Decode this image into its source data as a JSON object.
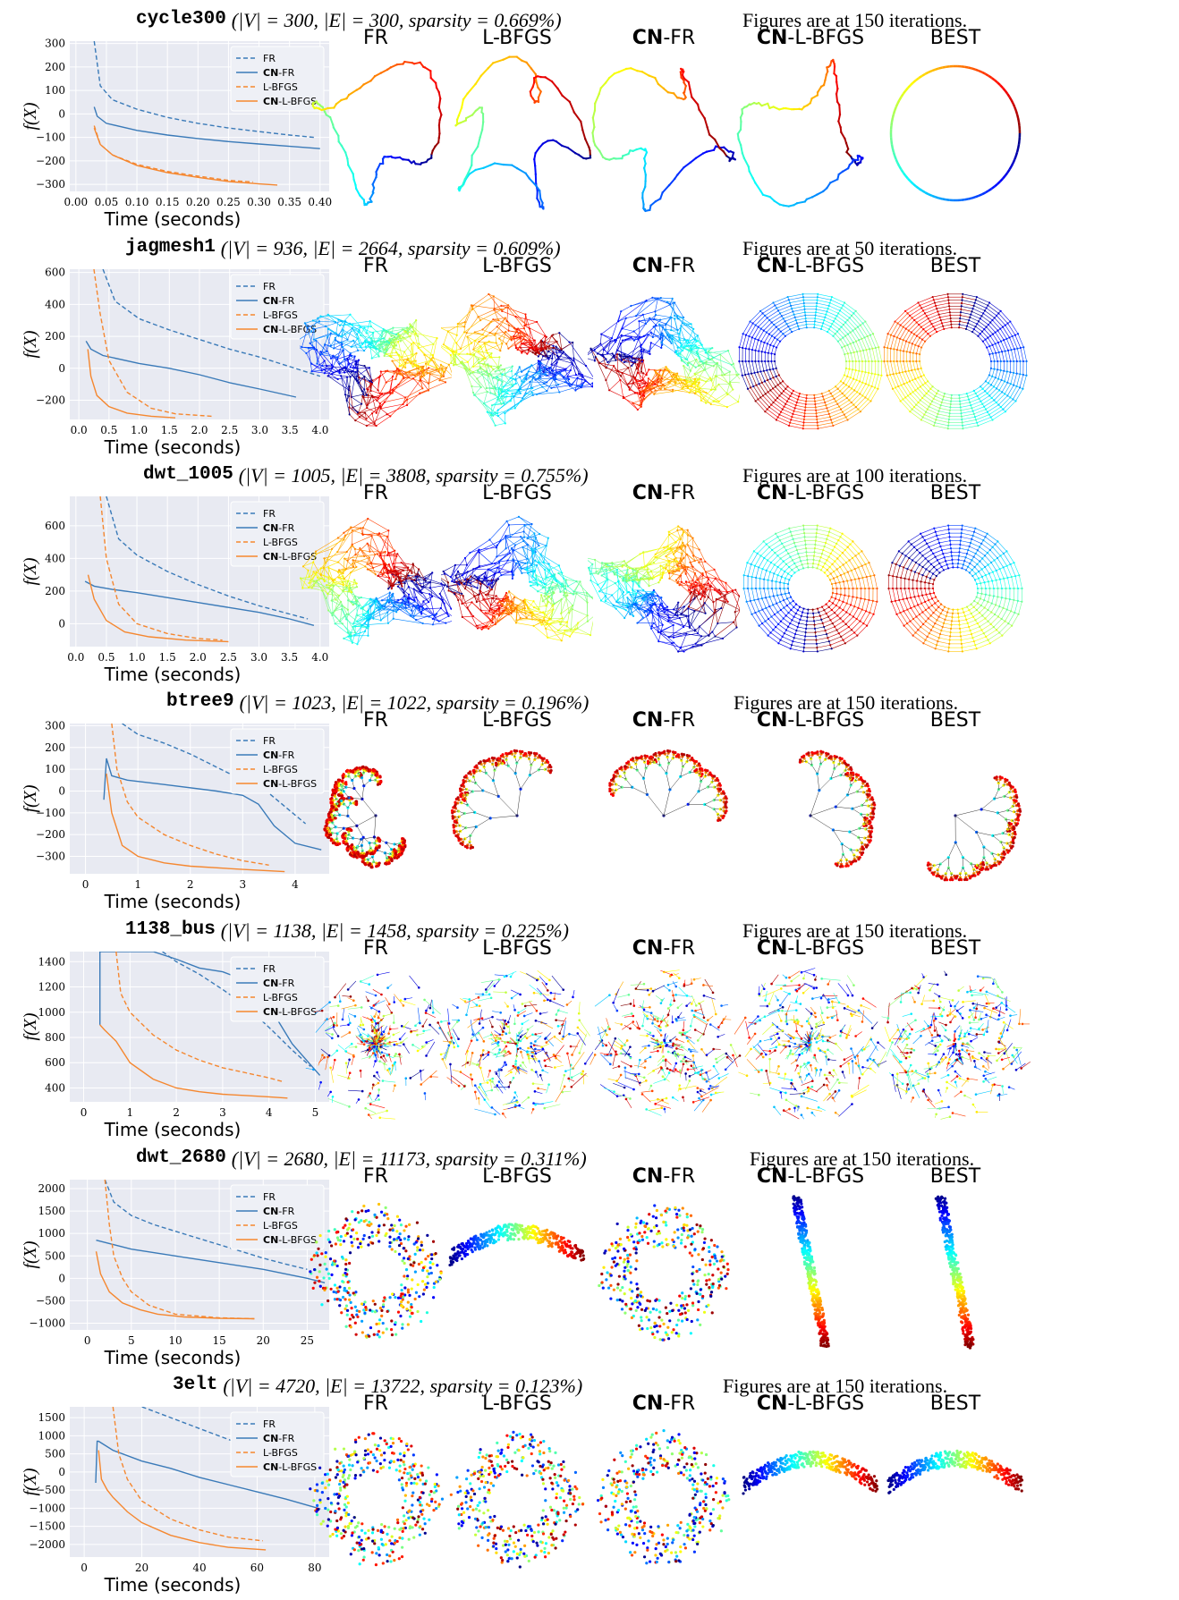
{
  "column_labels": [
    {
      "bold": "",
      "rest": "FR"
    },
    {
      "bold": "",
      "rest": "L-BFGS"
    },
    {
      "bold": "CN",
      "rest": "-FR"
    },
    {
      "bold": "CN",
      "rest": "-L-BFGS"
    },
    {
      "bold": "",
      "rest": "BEST"
    }
  ],
  "ylabel": "f(X)",
  "xlabel": "Time (seconds)",
  "legend": [
    "FR",
    "CN-FR",
    "L-BFGS",
    "CN-L-BFGS"
  ],
  "colors": {
    "fr": "#3a7ab8",
    "lbfgs": "#f5872f",
    "plot_bg": "#e8eaf2",
    "grid": "#ffffff"
  },
  "sections": [
    {
      "name": "cycle300",
      "stats": "(|V| = 300, |E| = 300, sparsity = 0.669%)",
      "iterations": "Figures are at 150 iterations."
    },
    {
      "name": "jagmesh1",
      "stats": "(|V| = 936, |E| = 2664, sparsity = 0.609%)",
      "iterations": "Figures are at 50 iterations."
    },
    {
      "name": "dwt_1005",
      "stats": "(|V| = 1005, |E| = 3808, sparsity = 0.755%)",
      "iterations": "Figures are at 100 iterations."
    },
    {
      "name": "btree9",
      "stats": "(|V| = 1023, |E| = 1022, sparsity = 0.196%)",
      "iterations": "Figures are at 150 iterations."
    },
    {
      "name": "1138_bus",
      "stats": "(|V| = 1138, |E| = 1458, sparsity = 0.225%)",
      "iterations": "Figures are at 150 iterations."
    },
    {
      "name": "dwt_2680",
      "stats": "(|V| = 2680, |E| = 11173, sparsity = 0.311%)",
      "iterations": "Figures are at 150 iterations."
    },
    {
      "name": "3elt",
      "stats": "(|V| = 4720, |E| = 13722, sparsity = 0.123%)",
      "iterations": "Figures are at 150 iterations."
    }
  ],
  "chart_data": [
    {
      "type": "line",
      "graph": "cycle300",
      "xticks": [
        "0.00",
        "0.05",
        "0.10",
        "0.15",
        "0.20",
        "0.25",
        "0.30",
        "0.35",
        "0.40"
      ],
      "xlim": [
        -0.01,
        0.415
      ],
      "yticks": [
        "300",
        "200",
        "100",
        "0",
        "−100",
        "−200",
        "−300"
      ],
      "ytick_values": [
        300,
        200,
        100,
        0,
        -100,
        -200,
        -300
      ],
      "ylim": [
        -330,
        310
      ],
      "series": [
        {
          "name": "FR",
          "style": "dashed",
          "color": "fr",
          "x": [
            0.03,
            0.04,
            0.06,
            0.1,
            0.15,
            0.2,
            0.25,
            0.3,
            0.35,
            0.39
          ],
          "y": [
            310,
            120,
            60,
            20,
            -15,
            -40,
            -60,
            -75,
            -90,
            -100
          ]
        },
        {
          "name": "CN-FR",
          "style": "solid",
          "color": "fr",
          "x": [
            0.03,
            0.035,
            0.05,
            0.1,
            0.15,
            0.2,
            0.25,
            0.3,
            0.35,
            0.4
          ],
          "y": [
            30,
            -10,
            -40,
            -70,
            -90,
            -105,
            -118,
            -128,
            -138,
            -148
          ]
        },
        {
          "name": "L-BFGS",
          "style": "dashed",
          "color": "lbfgs",
          "x": [
            0.03,
            0.04,
            0.06,
            0.1,
            0.15,
            0.2,
            0.25,
            0.29
          ],
          "y": [
            -50,
            -130,
            -175,
            -215,
            -245,
            -265,
            -283,
            -290
          ]
        },
        {
          "name": "CN-L-BFGS",
          "style": "solid",
          "color": "lbfgs",
          "x": [
            0.03,
            0.04,
            0.06,
            0.1,
            0.15,
            0.2,
            0.25,
            0.3,
            0.33
          ],
          "y": [
            -60,
            -130,
            -175,
            -220,
            -250,
            -270,
            -288,
            -298,
            -303
          ]
        }
      ]
    },
    {
      "type": "line",
      "graph": "jagmesh1",
      "xticks": [
        "0.0",
        "0.5",
        "1.0",
        "1.5",
        "2.0",
        "2.5",
        "3.0",
        "3.5",
        "4.0"
      ],
      "xlim": [
        -0.15,
        4.15
      ],
      "yticks": [
        "600",
        "400",
        "200",
        "0",
        "−200"
      ],
      "ytick_values": [
        600,
        400,
        200,
        0,
        -200
      ],
      "ylim": [
        -320,
        620
      ],
      "series": [
        {
          "name": "FR",
          "style": "dashed",
          "color": "fr",
          "x": [
            0.4,
            0.6,
            1.0,
            1.5,
            2.0,
            2.5,
            3.0,
            3.5,
            4.0
          ],
          "y": [
            620,
            420,
            310,
            240,
            180,
            120,
            70,
            10,
            -50
          ]
        },
        {
          "name": "CN-FR",
          "style": "solid",
          "color": "fr",
          "x": [
            0.12,
            0.2,
            0.4,
            1.0,
            1.5,
            2.0,
            2.5,
            3.0,
            3.6
          ],
          "y": [
            170,
            120,
            80,
            30,
            0,
            -40,
            -90,
            -130,
            -180
          ]
        },
        {
          "name": "L-BFGS",
          "style": "dashed",
          "color": "lbfgs",
          "x": [
            0.25,
            0.35,
            0.5,
            0.8,
            1.2,
            1.6,
            2.2
          ],
          "y": [
            620,
            350,
            50,
            -150,
            -250,
            -285,
            -300
          ]
        },
        {
          "name": "CN-L-BFGS",
          "style": "solid",
          "color": "lbfgs",
          "x": [
            0.15,
            0.2,
            0.3,
            0.5,
            0.8,
            1.2,
            1.6
          ],
          "y": [
            120,
            -50,
            -170,
            -240,
            -280,
            -300,
            -310
          ]
        }
      ]
    },
    {
      "type": "line",
      "graph": "dwt_1005",
      "xticks": [
        "0.0",
        "0.5",
        "1.0",
        "1.5",
        "2.0",
        "2.5",
        "3.0",
        "3.5",
        "4.0"
      ],
      "xlim": [
        -0.1,
        4.15
      ],
      "yticks": [
        "600",
        "400",
        "200",
        "0"
      ],
      "ytick_values": [
        600,
        400,
        200,
        0
      ],
      "ylim": [
        -140,
        780
      ],
      "series": [
        {
          "name": "FR",
          "style": "dashed",
          "color": "fr",
          "x": [
            0.5,
            0.7,
            1.0,
            1.5,
            2.0,
            2.5,
            3.0,
            3.5,
            3.8
          ],
          "y": [
            780,
            520,
            420,
            320,
            240,
            170,
            110,
            60,
            30
          ]
        },
        {
          "name": "CN-FR",
          "style": "solid",
          "color": "fr",
          "x": [
            0.15,
            0.3,
            0.6,
            1.0,
            1.5,
            2.0,
            2.5,
            3.0,
            3.5,
            3.9
          ],
          "y": [
            260,
            230,
            210,
            190,
            160,
            130,
            100,
            70,
            30,
            -10
          ]
        },
        {
          "name": "L-BFGS",
          "style": "dashed",
          "color": "lbfgs",
          "x": [
            0.4,
            0.5,
            0.7,
            1.0,
            1.5,
            2.0,
            2.4
          ],
          "y": [
            780,
            400,
            120,
            0,
            -60,
            -90,
            -100
          ]
        },
        {
          "name": "CN-L-BFGS",
          "style": "solid",
          "color": "lbfgs",
          "x": [
            0.2,
            0.3,
            0.5,
            0.8,
            1.2,
            1.8,
            2.5
          ],
          "y": [
            300,
            150,
            20,
            -50,
            -80,
            -100,
            -110
          ]
        }
      ]
    },
    {
      "type": "line",
      "graph": "btree9",
      "xticks": [
        "0",
        "1",
        "2",
        "3",
        "4"
      ],
      "xlim": [
        -0.3,
        4.65
      ],
      "yticks": [
        "300",
        "200",
        "100",
        "0",
        "−100",
        "−200",
        "−300"
      ],
      "ytick_values": [
        300,
        200,
        100,
        0,
        -100,
        -200,
        -300
      ],
      "ylim": [
        -380,
        310
      ],
      "series": [
        {
          "name": "FR",
          "style": "dashed",
          "color": "fr",
          "x": [
            0.7,
            1.0,
            1.5,
            2.0,
            2.5,
            3.0,
            3.5,
            4.0,
            4.2
          ],
          "y": [
            310,
            260,
            220,
            170,
            110,
            50,
            -10,
            -110,
            -150
          ]
        },
        {
          "name": "CN-FR",
          "style": "solid",
          "color": "fr",
          "x": [
            0.35,
            0.4,
            0.5,
            0.8,
            1.5,
            2.5,
            3.0,
            3.3,
            3.6,
            4.0,
            4.5
          ],
          "y": [
            -40,
            150,
            70,
            50,
            30,
            0,
            -20,
            -60,
            -160,
            -240,
            -270
          ]
        },
        {
          "name": "L-BFGS",
          "style": "dashed",
          "color": "lbfgs",
          "x": [
            0.5,
            0.6,
            0.8,
            1.0,
            1.5,
            2.0,
            2.5,
            3.0,
            3.5
          ],
          "y": [
            310,
            100,
            -50,
            -120,
            -200,
            -250,
            -290,
            -320,
            -340
          ]
        },
        {
          "name": "CN-L-BFGS",
          "style": "solid",
          "color": "lbfgs",
          "x": [
            0.4,
            0.5,
            0.7,
            1.0,
            1.5,
            2.0,
            3.0,
            3.8
          ],
          "y": [
            80,
            -100,
            -250,
            -300,
            -330,
            -345,
            -360,
            -370
          ]
        }
      ]
    },
    {
      "type": "line",
      "graph": "1138_bus",
      "xticks": [
        "0",
        "1",
        "2",
        "3",
        "4",
        "5"
      ],
      "xlim": [
        -0.3,
        5.3
      ],
      "yticks": [
        "1400",
        "1200",
        "1000",
        "800",
        "600",
        "400"
      ],
      "ytick_values": [
        1400,
        1200,
        1000,
        800,
        600,
        400
      ],
      "ylim": [
        290,
        1480
      ],
      "series": [
        {
          "name": "FR",
          "style": "dashed",
          "color": "fr",
          "x": [
            1.7,
            2.0,
            2.5,
            3.0,
            3.5,
            4.0,
            4.5,
            4.9
          ],
          "y": [
            1480,
            1400,
            1300,
            1180,
            1050,
            880,
            700,
            570
          ]
        },
        {
          "name": "CN-FR",
          "style": "solid",
          "color": "fr",
          "x": [
            0.35,
            0.35,
            0.4,
            0.7,
            1.0,
            1.5,
            2.0,
            2.5,
            3.0,
            3.5,
            4.0,
            4.5,
            5.1
          ],
          "y": [
            900,
            1480,
            1480,
            1480,
            1480,
            1480,
            1420,
            1350,
            1320,
            1250,
            1050,
            750,
            500
          ]
        },
        {
          "name": "L-BFGS",
          "style": "dashed",
          "color": "lbfgs",
          "x": [
            0.7,
            0.8,
            1.0,
            1.5,
            2.0,
            2.5,
            3.0,
            3.5,
            4.0,
            4.3
          ],
          "y": [
            1480,
            1150,
            1000,
            820,
            700,
            620,
            560,
            520,
            480,
            450
          ]
        },
        {
          "name": "CN-L-BFGS",
          "style": "solid",
          "color": "lbfgs",
          "x": [
            0.35,
            0.45,
            0.7,
            1.0,
            1.5,
            2.0,
            2.5,
            3.0,
            3.5,
            4.0,
            4.4
          ],
          "y": [
            900,
            860,
            770,
            600,
            470,
            400,
            370,
            350,
            340,
            330,
            320
          ]
        }
      ]
    },
    {
      "type": "line",
      "graph": "dwt_2680",
      "xticks": [
        "0",
        "5",
        "10",
        "15",
        "20",
        "25"
      ],
      "xlim": [
        -2,
        27.5
      ],
      "yticks": [
        "2000",
        "1500",
        "1000",
        "500",
        "0",
        "−500",
        "−1000"
      ],
      "ytick_values": [
        2000,
        1500,
        1000,
        500,
        0,
        -500,
        -1000
      ],
      "ylim": [
        -1150,
        2200
      ],
      "series": [
        {
          "name": "FR",
          "style": "dashed",
          "color": "fr",
          "x": [
            2.0,
            3.0,
            5.0,
            7.5,
            10.0,
            12.5,
            15.0,
            17.5,
            20.0,
            22.5,
            25.0
          ],
          "y": [
            2200,
            1700,
            1400,
            1200,
            1050,
            900,
            750,
            600,
            450,
            320,
            200
          ]
        },
        {
          "name": "CN-FR",
          "style": "solid",
          "color": "fr",
          "x": [
            1.0,
            3.0,
            5.0,
            10.0,
            15.0,
            20.0,
            25.0,
            27.0
          ],
          "y": [
            850,
            750,
            650,
            500,
            350,
            200,
            0,
            -100
          ]
        },
        {
          "name": "L-BFGS",
          "style": "dashed",
          "color": "lbfgs",
          "x": [
            2.0,
            2.5,
            3.0,
            4.0,
            5.0,
            7.0,
            10.0,
            15.0,
            19.0
          ],
          "y": [
            2200,
            1200,
            500,
            0,
            -300,
            -600,
            -800,
            -880,
            -900
          ]
        },
        {
          "name": "CN-L-BFGS",
          "style": "solid",
          "color": "lbfgs",
          "x": [
            1.0,
            1.5,
            2.5,
            4.0,
            6.0,
            8.0,
            11.0,
            15.0,
            19.0
          ],
          "y": [
            600,
            100,
            -300,
            -550,
            -700,
            -800,
            -860,
            -890,
            -900
          ]
        }
      ]
    },
    {
      "type": "line",
      "graph": "3elt",
      "xticks": [
        "0",
        "20",
        "40",
        "60",
        "80"
      ],
      "xlim": [
        -5,
        85
      ],
      "yticks": [
        "1500",
        "1000",
        "500",
        "0",
        "−500",
        "−1000",
        "−1500",
        "−2000"
      ],
      "ytick_values": [
        1500,
        1000,
        500,
        0,
        -500,
        -1000,
        -1500,
        -2000
      ],
      "ylim": [
        -2350,
        1800
      ],
      "series": [
        {
          "name": "FR",
          "style": "dashed",
          "color": "fr",
          "x": [
            20,
            30,
            40,
            50,
            60,
            70,
            80
          ],
          "y": [
            1800,
            1500,
            1200,
            900,
            600,
            300,
            20
          ]
        },
        {
          "name": "CN-FR",
          "style": "solid",
          "color": "fr",
          "x": [
            4,
            4.5,
            5,
            10,
            20,
            30,
            40,
            50,
            60,
            70,
            82
          ],
          "y": [
            -300,
            850,
            850,
            600,
            300,
            100,
            -150,
            -350,
            -550,
            -750,
            -1020
          ]
        },
        {
          "name": "L-BFGS",
          "style": "dashed",
          "color": "lbfgs",
          "x": [
            10,
            12,
            15,
            20,
            30,
            40,
            50,
            62
          ],
          "y": [
            1800,
            500,
            -200,
            -800,
            -1300,
            -1600,
            -1800,
            -1900
          ]
        },
        {
          "name": "CN-L-BFGS",
          "style": "solid",
          "color": "lbfgs",
          "x": [
            5,
            6,
            8,
            10,
            15,
            20,
            30,
            40,
            50,
            63
          ],
          "y": [
            600,
            -200,
            -500,
            -700,
            -1100,
            -1400,
            -1750,
            -1950,
            -2080,
            -2150
          ]
        }
      ]
    }
  ]
}
